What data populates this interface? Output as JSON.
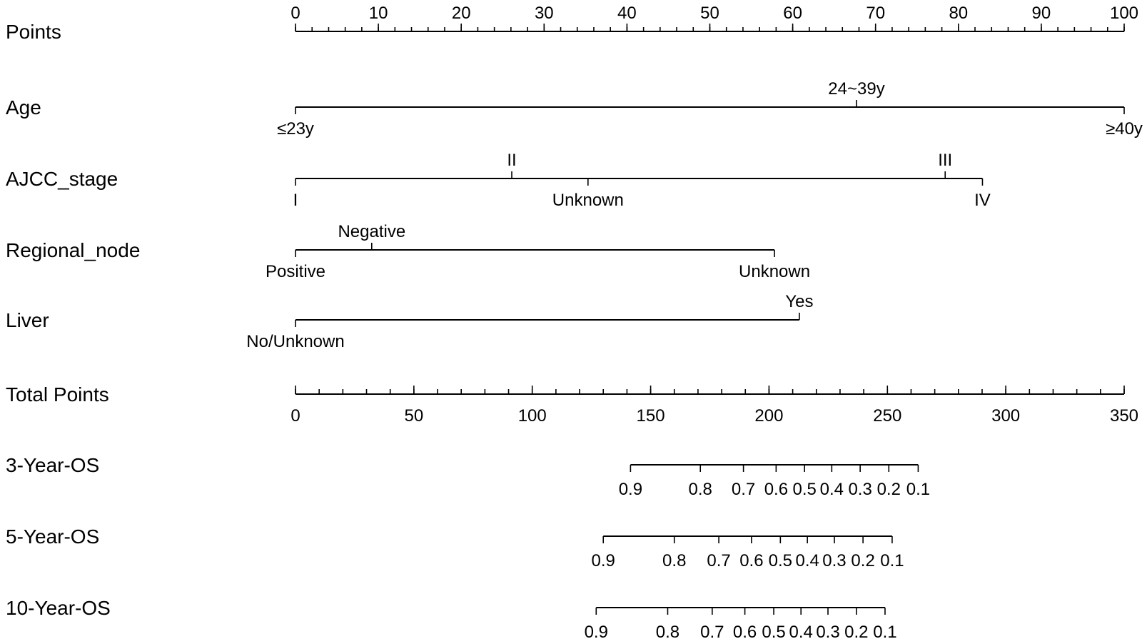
{
  "chart_data": {
    "type": "nomogram",
    "points_axis": {
      "label": "Points",
      "min": 0,
      "max": 100,
      "major_ticks": [
        0,
        10,
        20,
        30,
        40,
        50,
        60,
        70,
        80,
        90,
        100
      ],
      "major_tick_labels": [
        "0",
        "10",
        "20",
        "30",
        "40",
        "50",
        "60",
        "70",
        "80",
        "90",
        "100"
      ],
      "minor_step": 2
    },
    "variables": [
      {
        "name": "Age",
        "levels": [
          {
            "label": "≤23y",
            "points": 0,
            "side": "below"
          },
          {
            "label": "24~39y",
            "points": 67.7,
            "side": "above"
          },
          {
            "label": "≥40y",
            "points": 100,
            "side": "below"
          }
        ]
      },
      {
        "name": "AJCC_stage",
        "levels": [
          {
            "label": "I",
            "points": 0,
            "side": "below"
          },
          {
            "label": "II",
            "points": 26.1,
            "side": "above"
          },
          {
            "label": "Unknown",
            "points": 35.3,
            "side": "below"
          },
          {
            "label": "III",
            "points": 78.4,
            "side": "above"
          },
          {
            "label": "IV",
            "points": 82.9,
            "side": "below"
          }
        ]
      },
      {
        "name": "Regional_node",
        "levels": [
          {
            "label": "Positive",
            "points": 0,
            "side": "below"
          },
          {
            "label": "Negative",
            "points": 9.2,
            "side": "above"
          },
          {
            "label": "Unknown",
            "points": 57.8,
            "side": "below"
          }
        ]
      },
      {
        "name": "Liver",
        "levels": [
          {
            "label": "No/Unknown",
            "points": 0,
            "side": "below"
          },
          {
            "label": "Yes",
            "points": 60.8,
            "side": "above"
          }
        ]
      }
    ],
    "total_points_axis": {
      "label": "Total Points",
      "min": 0,
      "max": 350,
      "major_ticks": [
        0,
        50,
        100,
        150,
        200,
        250,
        300,
        350
      ],
      "major_tick_labels": [
        "0",
        "50",
        "100",
        "150",
        "200",
        "250",
        "300",
        "350"
      ],
      "minor_step": 10
    },
    "survival_axes": [
      {
        "name": "3-Year-OS",
        "ticks": [
          {
            "label": "0.9",
            "total_points": 141.5
          },
          {
            "label": "0.8",
            "total_points": 171.0
          },
          {
            "label": "0.7",
            "total_points": 189.2
          },
          {
            "label": "0.6",
            "total_points": 203.0
          },
          {
            "label": "0.5",
            "total_points": 215.0
          },
          {
            "label": "0.4",
            "total_points": 226.5
          },
          {
            "label": "0.3",
            "total_points": 238.5
          },
          {
            "label": "0.2",
            "total_points": 250.6
          },
          {
            "label": "0.1",
            "total_points": 263.0
          }
        ]
      },
      {
        "name": "5-Year-OS",
        "ticks": [
          {
            "label": "0.9",
            "total_points": 130.0
          },
          {
            "label": "0.8",
            "total_points": 160.0
          },
          {
            "label": "0.7",
            "total_points": 178.8
          },
          {
            "label": "0.6",
            "total_points": 192.6
          },
          {
            "label": "0.5",
            "total_points": 204.8
          },
          {
            "label": "0.4",
            "total_points": 216.2
          },
          {
            "label": "0.3",
            "total_points": 227.6
          },
          {
            "label": "0.2",
            "total_points": 239.7
          },
          {
            "label": "0.1",
            "total_points": 252.0
          }
        ]
      },
      {
        "name": "10-Year-OS",
        "ticks": [
          {
            "label": "0.9",
            "total_points": 127.0
          },
          {
            "label": "0.8",
            "total_points": 157.2
          },
          {
            "label": "0.7",
            "total_points": 176.0
          },
          {
            "label": "0.6",
            "total_points": 189.8
          },
          {
            "label": "0.5",
            "total_points": 202.0
          },
          {
            "label": "0.4",
            "total_points": 213.5
          },
          {
            "label": "0.3",
            "total_points": 224.9
          },
          {
            "label": "0.2",
            "total_points": 236.9
          },
          {
            "label": "0.1",
            "total_points": 249.0
          }
        ]
      }
    ]
  }
}
